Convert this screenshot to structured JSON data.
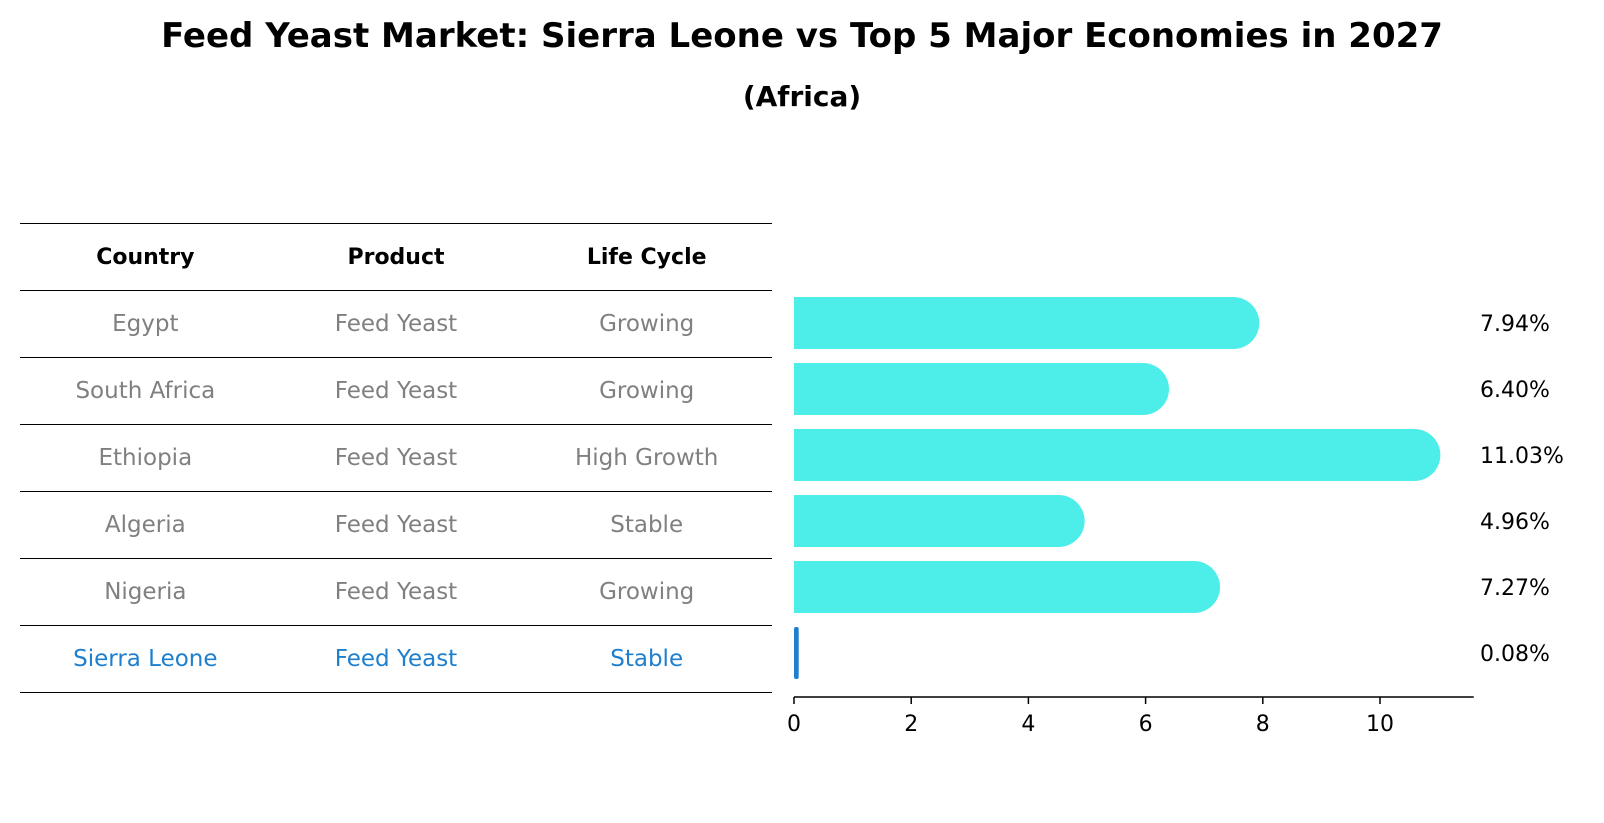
{
  "title": "Feed Yeast Market: Sierra Leone vs Top 5 Major Economies in 2027",
  "subtitle": "(Africa)",
  "table": {
    "headers": [
      "Country",
      "Product",
      "Life Cycle"
    ],
    "rows": [
      {
        "country": "Egypt",
        "product": "Feed Yeast",
        "life_cycle": "Growing"
      },
      {
        "country": "South Africa",
        "product": "Feed Yeast",
        "life_cycle": "Growing"
      },
      {
        "country": "Ethiopia",
        "product": "Feed Yeast",
        "life_cycle": "High Growth"
      },
      {
        "country": "Algeria",
        "product": "Feed Yeast",
        "life_cycle": "Stable"
      },
      {
        "country": "Nigeria",
        "product": "Feed Yeast",
        "life_cycle": "Growing"
      },
      {
        "country": "Sierra Leone",
        "product": "Feed Yeast",
        "life_cycle": "Stable"
      }
    ]
  },
  "chart_data": {
    "type": "bar",
    "orientation": "horizontal",
    "categories": [
      "Egypt",
      "South Africa",
      "Ethiopia",
      "Algeria",
      "Nigeria",
      "Sierra Leone"
    ],
    "values": [
      7.94,
      6.4,
      11.03,
      4.96,
      7.27,
      0.08
    ],
    "value_labels": [
      "7.94%",
      "6.40%",
      "11.03%",
      "4.96%",
      "7.27%",
      "0.08%"
    ],
    "xlim": [
      0,
      11.6
    ],
    "xticks": [
      0,
      2,
      4,
      6,
      8,
      10
    ],
    "xlabel": "",
    "ylabel": "",
    "grid": false,
    "colors": {
      "bar": "#4deeea",
      "highlight": "#1e7fcf"
    }
  }
}
